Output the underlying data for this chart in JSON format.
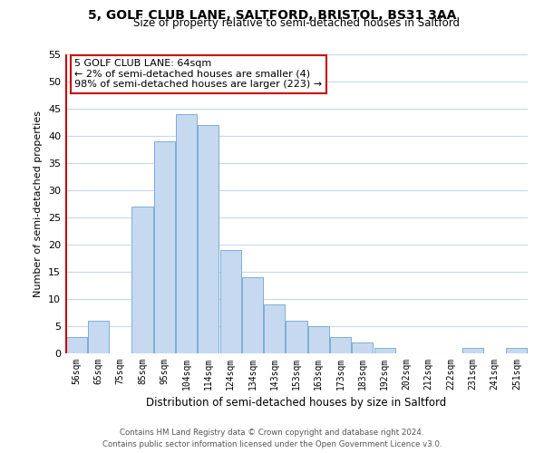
{
  "title": "5, GOLF CLUB LANE, SALTFORD, BRISTOL, BS31 3AA",
  "subtitle": "Size of property relative to semi-detached houses in Saltford",
  "xlabel": "Distribution of semi-detached houses by size in Saltford",
  "ylabel": "Number of semi-detached properties",
  "bar_labels": [
    "56sqm",
    "65sqm",
    "75sqm",
    "85sqm",
    "95sqm",
    "104sqm",
    "114sqm",
    "124sqm",
    "134sqm",
    "143sqm",
    "153sqm",
    "163sqm",
    "173sqm",
    "183sqm",
    "192sqm",
    "202sqm",
    "212sqm",
    "222sqm",
    "231sqm",
    "241sqm",
    "251sqm"
  ],
  "bar_values": [
    3,
    6,
    0,
    27,
    39,
    44,
    42,
    19,
    14,
    9,
    6,
    5,
    3,
    2,
    1,
    0,
    0,
    0,
    1,
    0,
    1
  ],
  "bar_color": "#c6d9f0",
  "bar_edge_color": "#7bafd4",
  "highlight_bar_index": 0,
  "highlight_bar_edge_color": "#cc0000",
  "ylim": [
    0,
    55
  ],
  "yticks": [
    0,
    5,
    10,
    15,
    20,
    25,
    30,
    35,
    40,
    45,
    50,
    55
  ],
  "annotation_title": "5 GOLF CLUB LANE: 64sqm",
  "annotation_line1": "← 2% of semi-detached houses are smaller (4)",
  "annotation_line2": "98% of semi-detached houses are larger (223) →",
  "annotation_box_color": "#ffffff",
  "annotation_box_edge_color": "#cc0000",
  "footer_line1": "Contains HM Land Registry data © Crown copyright and database right 2024.",
  "footer_line2": "Contains public sector information licensed under the Open Government Licence v3.0.",
  "bg_color": "#ffffff",
  "grid_color": "#c8d8ec"
}
